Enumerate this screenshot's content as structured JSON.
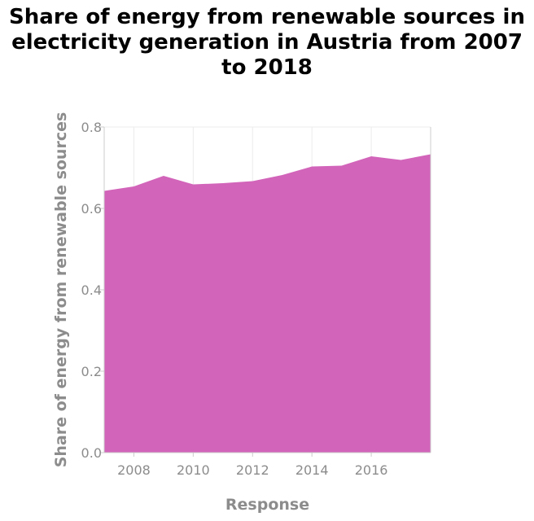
{
  "title_lines": [
    "Share of energy from renewable sources in",
    "electricity generation in Austria from 2007",
    "to 2018"
  ],
  "chart_data": {
    "type": "area",
    "title": "Share of energy from renewable sources in electricity generation in Austria from 2007 to 2018",
    "xlabel": "Response",
    "ylabel": "Share of energy from renewable sources",
    "x": [
      2007,
      2008,
      2009,
      2010,
      2011,
      2012,
      2013,
      2014,
      2015,
      2016,
      2017,
      2018
    ],
    "values": [
      0.643,
      0.654,
      0.68,
      0.659,
      0.662,
      0.667,
      0.682,
      0.703,
      0.705,
      0.728,
      0.719,
      0.733
    ],
    "xlim": [
      2007,
      2018
    ],
    "ylim": [
      0,
      0.8
    ],
    "xticks": [
      2008,
      2010,
      2012,
      2014,
      2016
    ],
    "yticks": [
      0.0,
      0.2,
      0.4,
      0.6,
      0.8
    ],
    "ytick_labels": [
      "0.0",
      "0.2",
      "0.4",
      "0.6",
      "0.8"
    ],
    "grid": true,
    "fill_color": "#d264b9"
  }
}
